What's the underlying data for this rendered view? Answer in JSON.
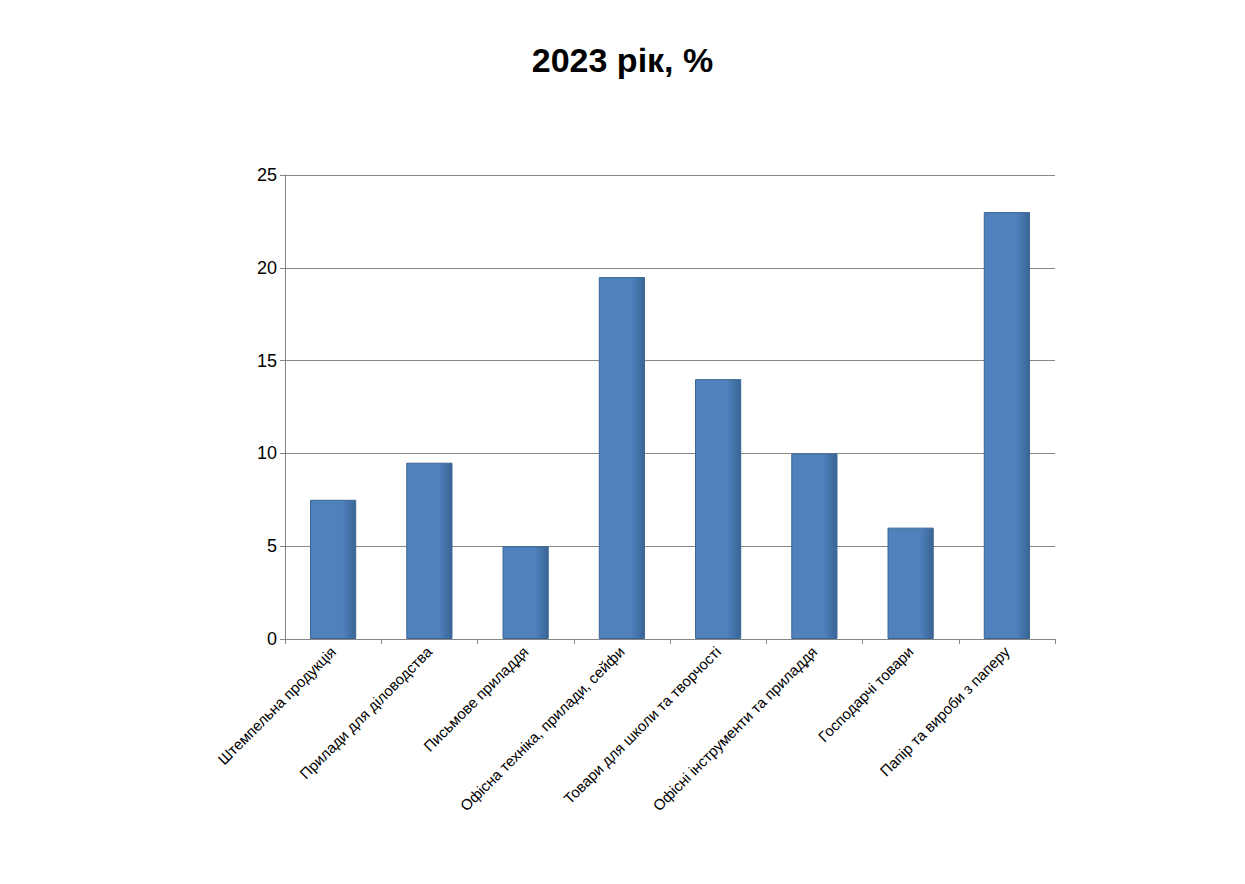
{
  "chart_data": {
    "type": "bar",
    "title": "2023 рік, %",
    "categories": [
      "Штемпельна продукція",
      "Прилади для діловодства",
      "Письмове приладдя",
      "Офісна техніка, прилади, сейфи",
      "Товари для школи та творчості",
      "Офісні інструменти та приладдя",
      "Господарчі товари",
      "Папір та вироби з паперу"
    ],
    "values": [
      7.5,
      9.5,
      5,
      19.5,
      14,
      10,
      6,
      23
    ],
    "color": "#4f81bd",
    "ylim": [
      0,
      25
    ],
    "yticks": [
      0,
      5,
      10,
      15,
      20,
      25
    ],
    "grid": true
  }
}
